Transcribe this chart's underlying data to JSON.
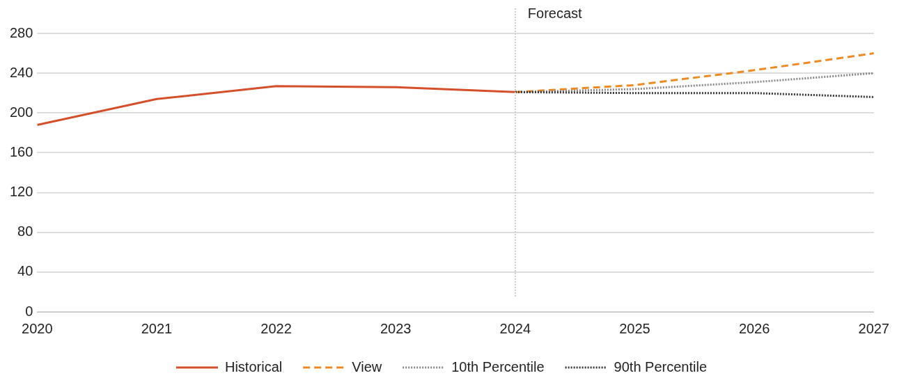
{
  "chart_data": {
    "type": "line",
    "x": [
      2020,
      2021,
      2022,
      2023,
      2024,
      2025,
      2026,
      2027
    ],
    "series": [
      {
        "name": "Historical",
        "color": "#d4502a",
        "line_style": "solid",
        "values": [
          188,
          214,
          227,
          226,
          221,
          null,
          null,
          null
        ]
      },
      {
        "name": "View",
        "color": "#ee8a22",
        "line_style": "dashed",
        "values": [
          null,
          null,
          null,
          null,
          221,
          228,
          243,
          260
        ]
      },
      {
        "name": "10th Percentile",
        "color": "#888888",
        "line_style": "dotted",
        "values": [
          null,
          null,
          null,
          null,
          221,
          224,
          231,
          240
        ]
      },
      {
        "name": "90th Percentile",
        "color": "#333333",
        "line_style": "dotted",
        "values": [
          null,
          null,
          null,
          null,
          221,
          220,
          220,
          216
        ]
      }
    ],
    "xlim": [
      2020,
      2027
    ],
    "xticks": [
      2020,
      2021,
      2022,
      2023,
      2024,
      2025,
      2026,
      2027
    ],
    "ylim": [
      0,
      280
    ],
    "yticks": [
      0,
      40,
      80,
      120,
      160,
      200,
      240,
      280
    ],
    "grid": "y",
    "legend": "bottom",
    "marker": "none",
    "ref_lines": [
      {
        "axis": "x",
        "value": 2024,
        "label": "Forecast",
        "color": "#cccccc",
        "line_style": "dotted"
      }
    ]
  }
}
